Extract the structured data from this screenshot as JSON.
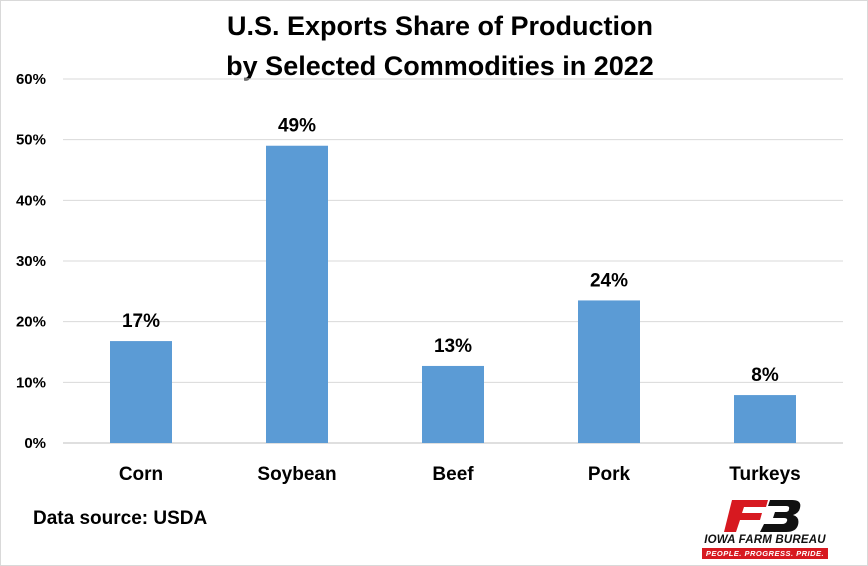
{
  "chart_data": {
    "type": "bar",
    "title_line1": "U.S. Exports Share of Production",
    "title_line2": "by Selected Commodities in 2022",
    "categories": [
      "Corn",
      "Soybean",
      "Beef",
      "Pork",
      "Turkeys"
    ],
    "values": [
      16.8,
      49.0,
      12.7,
      23.5,
      7.9
    ],
    "data_labels": [
      "17%",
      "49%",
      "13%",
      "24%",
      "8%"
    ],
    "y_ticks": [
      "0%",
      "10%",
      "20%",
      "30%",
      "40%",
      "50%",
      "60%"
    ],
    "ylim": [
      0,
      60
    ],
    "grid": true,
    "bar_color": "#5b9bd5",
    "xlabel": "",
    "ylabel": ""
  },
  "source": "Data source: USDA",
  "logo": {
    "name": "IOWA FARM BUREAU",
    "tagline": "PEOPLE. PROGRESS. PRIDE.",
    "colors": {
      "red": "#d71920",
      "black": "#111111"
    }
  }
}
